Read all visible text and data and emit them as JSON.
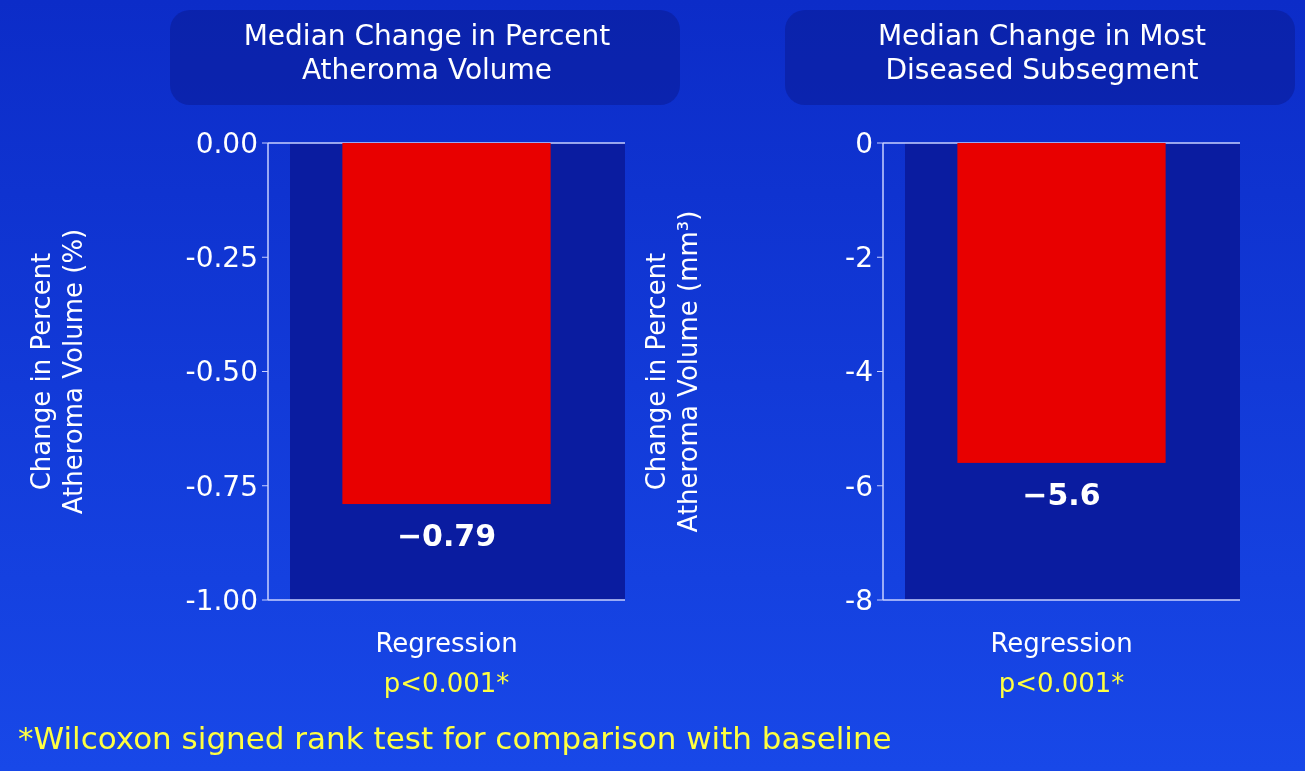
{
  "chart_data": [
    {
      "type": "bar",
      "title": "Median Change in Percent Atheroma Volume",
      "ylabel": "Change in Percent Atheroma Volume (%)",
      "categories": [
        "Regression"
      ],
      "values": [
        -0.79
      ],
      "color": "#e80000",
      "value_labels": [
        "−0.79"
      ],
      "ylim": [
        -1,
        0
      ],
      "yticks": [
        {
          "value": -1,
          "label": "-1.00"
        },
        {
          "value": -0.75,
          "label": "-0.75"
        },
        {
          "value": -0.5,
          "label": "-0.50"
        },
        {
          "value": -0.25,
          "label": "-0.25"
        },
        {
          "value": 0,
          "label": "0.00"
        }
      ],
      "grid": false,
      "annotations": [
        "p<0.001*",
        "*Wilcoxon signed rank test for comparison with baseline"
      ]
    },
    {
      "type": "bar",
      "title": "Median Change in Most Diseased Subsegment",
      "ylabel": "Change in Percent Atheroma Volume (mm³)",
      "categories": [
        "Regression"
      ],
      "values": [
        -5.6
      ],
      "color": "#e80000",
      "value_labels": [
        "−5.6"
      ],
      "ylim": [
        -8,
        0
      ],
      "yticks": [
        -8,
        -6,
        -4,
        -2,
        0
      ],
      "grid": false,
      "annotations": [
        "p<0.001*"
      ]
    }
  ]
}
